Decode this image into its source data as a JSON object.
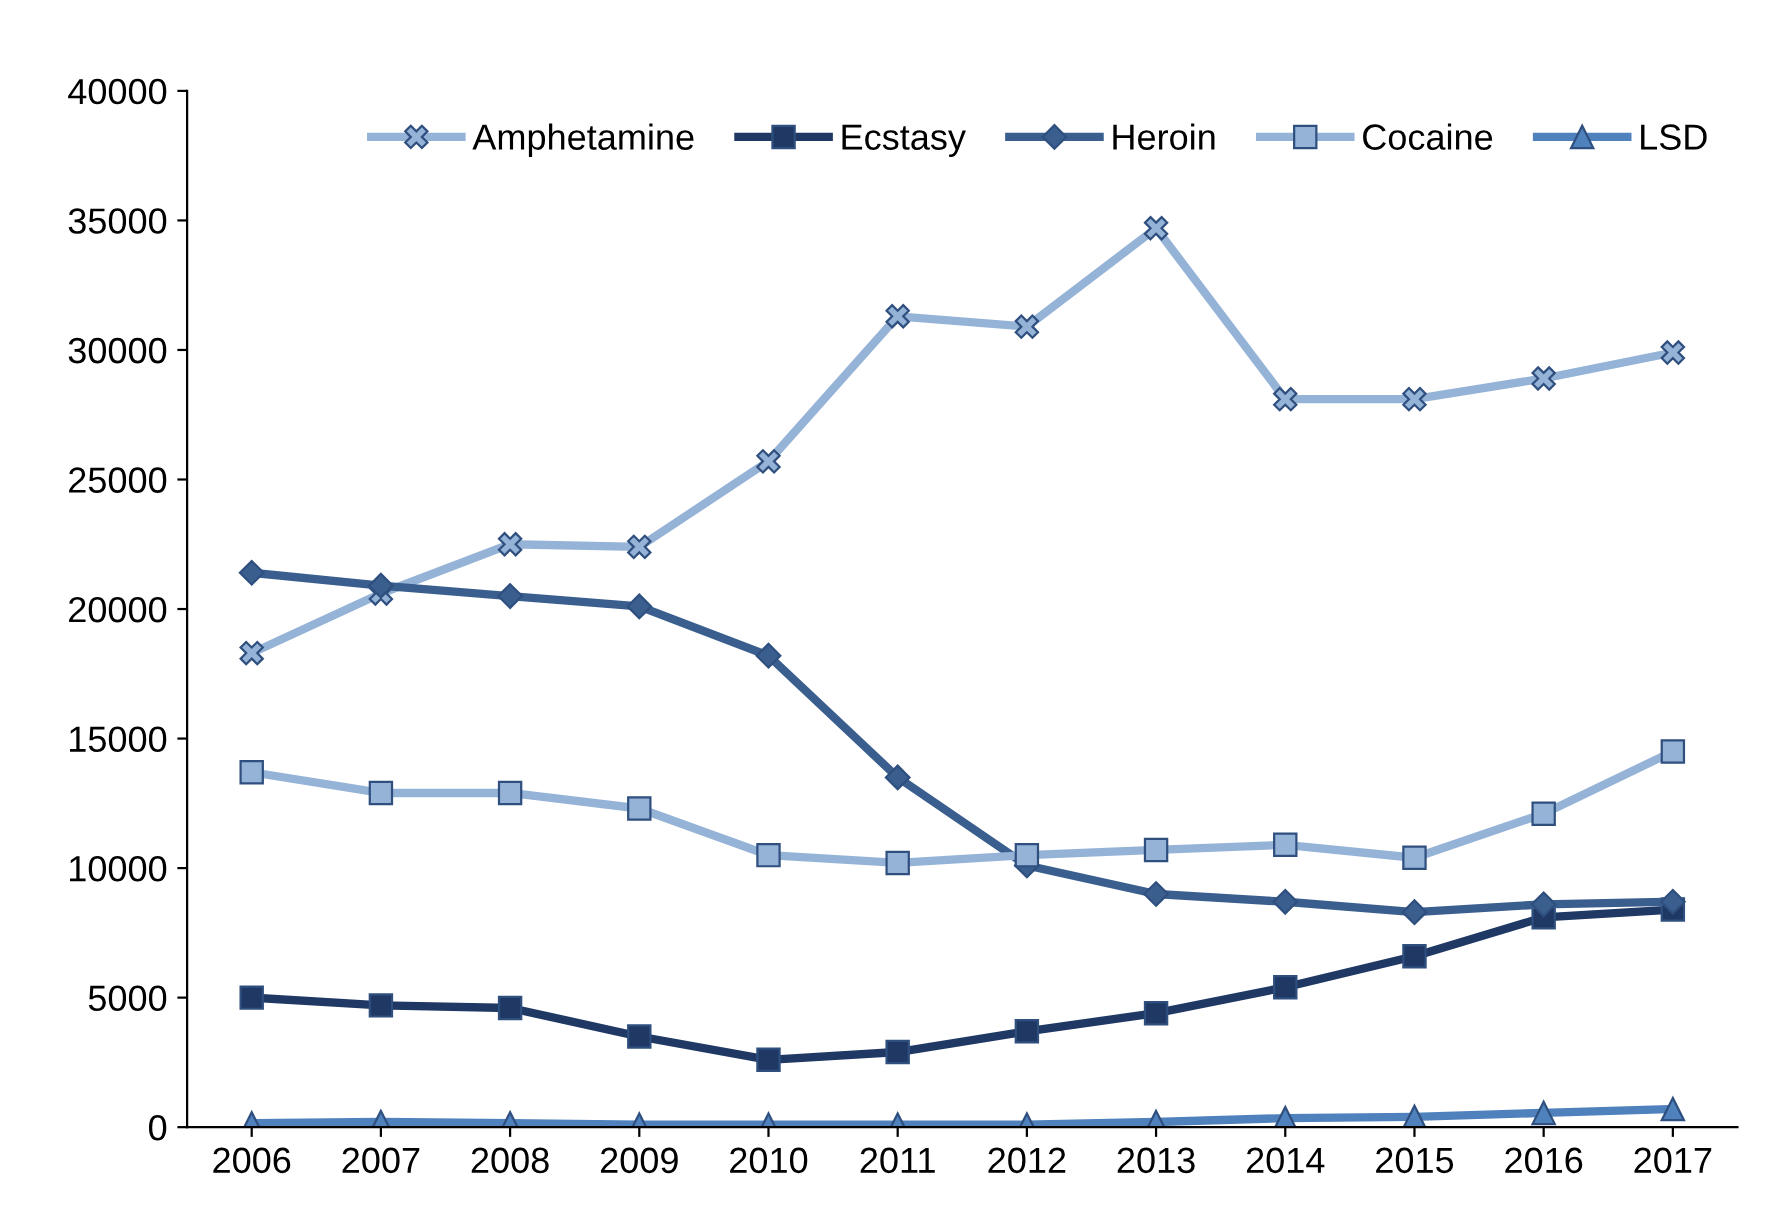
{
  "chart_data": {
    "type": "line",
    "categories": [
      "2006",
      "2007",
      "2008",
      "2009",
      "2010",
      "2011",
      "2012",
      "2013",
      "2014",
      "2015",
      "2016",
      "2017"
    ],
    "series": [
      {
        "name": "Amphetamine",
        "color": "#95b3d7",
        "marker": "cross",
        "values": [
          18300,
          20600,
          22500,
          22400,
          25700,
          31300,
          30900,
          34700,
          28100,
          28100,
          28900,
          29900
        ]
      },
      {
        "name": "Ecstasy",
        "color": "#1f3864",
        "marker": "square",
        "values": [
          5000,
          4700,
          4600,
          3500,
          2600,
          2900,
          3700,
          4400,
          5400,
          6600,
          8100,
          8400
        ]
      },
      {
        "name": "Heroin",
        "color": "#3a5f8f",
        "marker": "diamond",
        "values": [
          21400,
          20900,
          20500,
          20100,
          18200,
          13500,
          10100,
          9000,
          8700,
          8300,
          8600,
          8700
        ]
      },
      {
        "name": "Cocaine",
        "color": "#95b3d7",
        "marker": "square",
        "values": [
          13700,
          12900,
          12900,
          12300,
          10500,
          10200,
          10500,
          10700,
          10900,
          10400,
          12100,
          14500
        ]
      },
      {
        "name": "LSD",
        "color": "#4f81bd",
        "marker": "triangle",
        "values": [
          150,
          200,
          150,
          100,
          100,
          100,
          100,
          200,
          350,
          400,
          550,
          700
        ]
      }
    ],
    "ylim": [
      0,
      40000
    ],
    "yticks": [
      0,
      5000,
      10000,
      15000,
      20000,
      25000,
      30000,
      35000,
      40000
    ],
    "grid": false,
    "legend": "top"
  }
}
